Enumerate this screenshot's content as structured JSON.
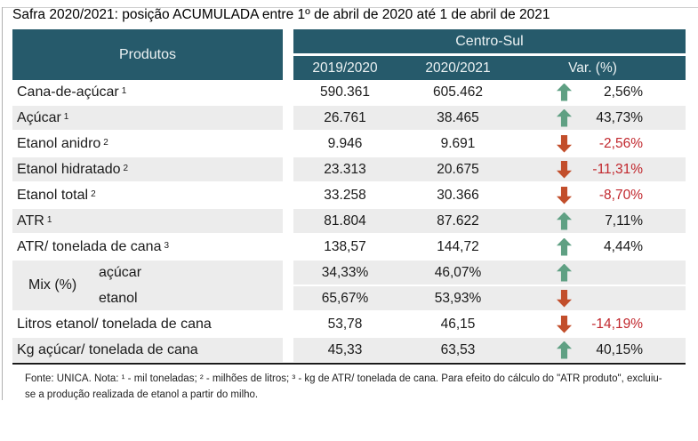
{
  "title": "Safra 2020/2021: posição ACUMULADA entre 1º de abril de 2020 até 1 de abril de 2021",
  "header": {
    "products_label": "Produtos",
    "region_label": "Centro-Sul",
    "season_1": "2019/2020",
    "season_2": "2020/2021",
    "variation": "Var. (%)"
  },
  "mix_group_label": "Mix (%)",
  "footnote": "Fonte: UNICA. Nota: ¹ - mil toneladas; ² - milhões de litros; ³ - kg de ATR/ tonelada de cana. Para efeito do cálculo do \"ATR produto\", excluiu-se a produção realizada de etanol a partir do milho.",
  "colors": {
    "header_teal": "#265A6B",
    "row_stripe": "#ECECEC",
    "up_arrow_green": "#5FA083",
    "down_arrow_red": "#C24E2B",
    "negative_text_red": "#C1272D"
  },
  "chart_data": {
    "type": "table",
    "title": "Safra 2020/2021: posição ACUMULADA entre 1º de abril de 2020 até 1 de abril de 2021",
    "region": "Centro-Sul",
    "columns": [
      "Produtos",
      "2019/2020",
      "2020/2021",
      "Var. (%)"
    ],
    "rows": [
      {
        "label": "Cana-de-açúcar",
        "sup": "1",
        "v1": "590.361",
        "v2": "605.462",
        "dir": "up",
        "var": "2,56%"
      },
      {
        "label": "Açúcar",
        "sup": "1",
        "v1": "26.761",
        "v2": "38.465",
        "dir": "up",
        "var": "43,73%"
      },
      {
        "label": "Etanol anidro",
        "sup": "2",
        "v1": "9.946",
        "v2": "9.691",
        "dir": "down",
        "var": "-2,56%"
      },
      {
        "label": "Etanol hidratado",
        "sup": "2",
        "v1": "23.313",
        "v2": "20.675",
        "dir": "down",
        "var": "-11,31%"
      },
      {
        "label": "Etanol total",
        "sup": "2",
        "v1": "33.258",
        "v2": "30.366",
        "dir": "down",
        "var": "-8,70%"
      },
      {
        "label": "ATR",
        "sup": "1",
        "v1": "81.804",
        "v2": "87.622",
        "dir": "up",
        "var": "7,11%"
      },
      {
        "label": "ATR/ tonelada de cana",
        "sup": "3",
        "v1": "138,57",
        "v2": "144,72",
        "dir": "up",
        "var": "4,44%"
      },
      {
        "label": "açúcar",
        "sup": "",
        "group": "Mix (%)",
        "v1": "34,33%",
        "v2": "46,07%",
        "dir": "up",
        "var": ""
      },
      {
        "label": "etanol",
        "sup": "",
        "group": "Mix (%)",
        "v1": "65,67%",
        "v2": "53,93%",
        "dir": "down",
        "var": ""
      },
      {
        "label": "Litros etanol/ tonelada de cana",
        "sup": "",
        "v1": "53,78",
        "v2": "46,15",
        "dir": "down",
        "var": "-14,19%"
      },
      {
        "label": "Kg açúcar/ tonelada de cana",
        "sup": "",
        "v1": "45,33",
        "v2": "63,53",
        "dir": "up",
        "var": "40,15%"
      }
    ]
  }
}
